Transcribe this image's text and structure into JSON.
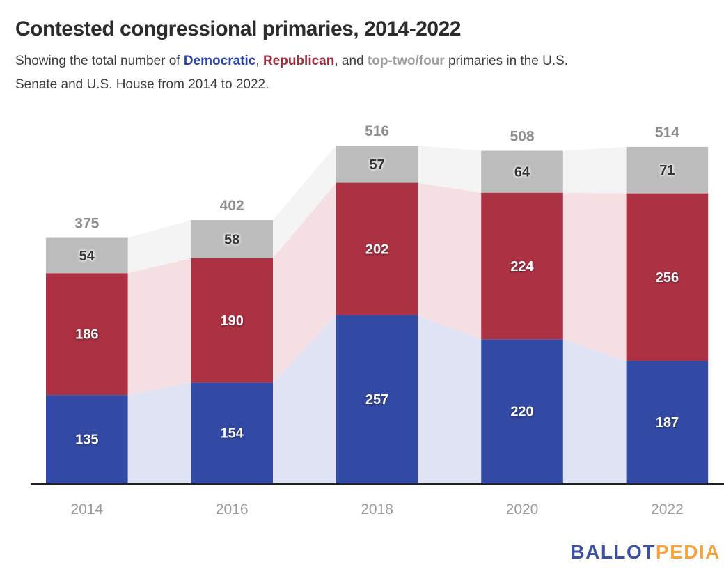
{
  "header": {
    "title": "Contested congressional primaries, 2014-2022",
    "subtitle_parts": [
      {
        "text": "Showing the total number of "
      },
      {
        "text": "Democratic",
        "color": "#2b46a8",
        "bold": true
      },
      {
        "text": ", "
      },
      {
        "text": "Republican",
        "color": "#a32c3e",
        "bold": true
      },
      {
        "text": ", and "
      },
      {
        "text": "top-two/four",
        "color": "#9e9e9e",
        "bold": true
      },
      {
        "text": " primaries in the U.S."
      },
      {
        "break": true
      },
      {
        "text": "Senate and U.S. House from 2014 to 2022."
      }
    ]
  },
  "chart_data": {
    "type": "bar",
    "variant": "stacked-bars-with-flow-connectors",
    "title": "Contested congressional primaries, 2014-2022",
    "subtitle": "Showing the total number of Democratic, Republican, and top-two/four primaries in the U.S. Senate and U.S. House from 2014 to 2022.",
    "categories": [
      "2014",
      "2016",
      "2018",
      "2020",
      "2022"
    ],
    "series": [
      {
        "name": "Democratic",
        "color": "#334aa5",
        "connector_color": "#dfe3f4",
        "label_color": "#ffffff",
        "values": [
          135,
          154,
          257,
          220,
          187
        ]
      },
      {
        "name": "Republican",
        "color": "#ab3143",
        "connector_color": "#f5dfe3",
        "label_color": "#ffffff",
        "values": [
          186,
          190,
          202,
          224,
          256
        ]
      },
      {
        "name": "Top-two/four",
        "color": "#bcbcbc",
        "connector_color": "#f4f4f4",
        "label_color": "#333333",
        "values": [
          54,
          58,
          57,
          64,
          71
        ]
      }
    ],
    "totals": [
      375,
      402,
      516,
      508,
      514
    ],
    "xlabel": "",
    "ylabel": "",
    "ylim": [
      0,
      516
    ],
    "grid": false,
    "legend_position": "inline-in-subtitle",
    "axis_line_color": "#202020",
    "total_label_color": "#8d8d8d",
    "year_label_color": "#9b9b9b"
  },
  "footer": {
    "logo": {
      "ballot": "BALLOT",
      "pedia": "PEDIA",
      "ballot_color": "#3b51a3",
      "pedia_color": "#f9a33a"
    }
  }
}
